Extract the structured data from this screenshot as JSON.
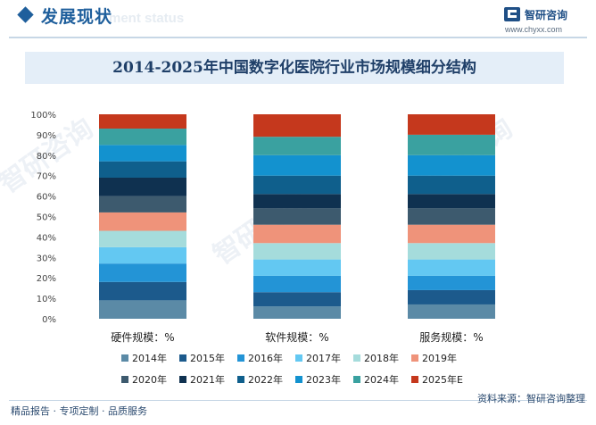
{
  "header": {
    "section_title": "发展现状",
    "section_subtitle": "ment status",
    "logo_name": "智研咨询",
    "logo_url": "www.chyxx.com"
  },
  "footer": {
    "left_text": "精品报告 · 专项定制 · 品质服务",
    "source_text": "资料来源：智研咨询整理",
    "brand_text": "智研咨询"
  },
  "watermark": "智研咨询",
  "colors": {
    "title_band": "#e4eef8",
    "brand": "#1f5f9c",
    "series": [
      "#5b8aa6",
      "#1c5a8c",
      "#2394d6",
      "#63c8f2",
      "#a5dcdc",
      "#ef937a",
      "#3d5a6e",
      "#0f3150",
      "#0f5f8c",
      "#1392cf",
      "#3aa1a0",
      "#c5381d"
    ]
  },
  "chart_data": {
    "type": "bar",
    "stacked": true,
    "normalized": true,
    "title": "2014-2025年中国数字化医院行业市场规模细分结构",
    "categories": [
      "硬件规模：%",
      "软件规模：%",
      "服务规模：%"
    ],
    "ylim": [
      0,
      100
    ],
    "yticks": [
      "0%",
      "10%",
      "20%",
      "30%",
      "40%",
      "50%",
      "60%",
      "70%",
      "80%",
      "90%",
      "100%"
    ],
    "legend_position": "bottom",
    "series": [
      {
        "name": "2014年",
        "values": [
          9,
          6,
          7
        ]
      },
      {
        "name": "2015年",
        "values": [
          9,
          7,
          7
        ]
      },
      {
        "name": "2016年",
        "values": [
          9,
          8,
          7
        ]
      },
      {
        "name": "2017年",
        "values": [
          8,
          8,
          8
        ]
      },
      {
        "name": "2018年",
        "values": [
          8,
          8,
          8
        ]
      },
      {
        "name": "2019年",
        "values": [
          9,
          9,
          9
        ]
      },
      {
        "name": "2020年",
        "values": [
          8,
          8,
          8
        ]
      },
      {
        "name": "2021年",
        "values": [
          9,
          7,
          7
        ]
      },
      {
        "name": "2022年",
        "values": [
          8,
          9,
          9
        ]
      },
      {
        "name": "2023年",
        "values": [
          8,
          10,
          10
        ]
      },
      {
        "name": "2024年",
        "values": [
          8,
          9,
          10
        ]
      },
      {
        "name": "2025年E",
        "values": [
          7,
          11,
          10
        ]
      }
    ]
  }
}
